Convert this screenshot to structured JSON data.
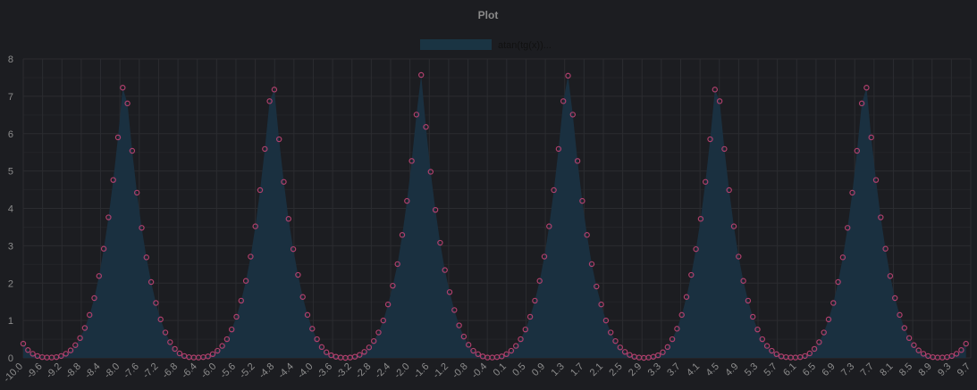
{
  "chart_data": {
    "type": "area",
    "title": "Plot",
    "xlabel": "",
    "ylabel": "",
    "xlim": [
      -10,
      10
    ],
    "ylim": [
      0,
      8
    ],
    "y_ticks": [
      "0",
      "1",
      "2",
      "3",
      "4",
      "5",
      "6",
      "7",
      "8"
    ],
    "x_tick_labels": [
      "-10.0",
      "-9.6",
      "-9.2",
      "-8.8",
      "-8.4",
      "-8.0",
      "-7.6",
      "-7.2",
      "-6.8",
      "-6.4",
      "-6.0",
      "-5.6",
      "-5.2",
      "-4.8",
      "-4.4",
      "-4.0",
      "-3.6",
      "-3.2",
      "-2.8",
      "-2.4",
      "-2.0",
      "-1.6",
      "-1.2",
      "-0.8",
      "-0.4",
      "0.1",
      "0.5",
      "0.9",
      "1.3",
      "1.7",
      "2.1",
      "2.5",
      "2.9",
      "3.3",
      "3.7",
      "4.1",
      "4.5",
      "4.9",
      "5.3",
      "5.7",
      "6.1",
      "6.5",
      "6.9",
      "7.3",
      "7.7",
      "8.1",
      "8.5",
      "8.9",
      "9.3",
      "9.7"
    ],
    "grid": true,
    "legend": "top-center",
    "series": [
      {
        "name": "atan(tg(x))...",
        "x_start": -10.0,
        "x_step": 0.1,
        "values": [
          0.38,
          0.21,
          0.11,
          0.05,
          0.02,
          0.01,
          0.01,
          0.02,
          0.05,
          0.11,
          0.2,
          0.34,
          0.53,
          0.8,
          1.15,
          1.6,
          2.19,
          2.92,
          3.76,
          4.76,
          5.9,
          7.23,
          6.81,
          5.54,
          4.42,
          3.48,
          2.69,
          2.03,
          1.47,
          1.03,
          0.68,
          0.42,
          0.24,
          0.12,
          0.05,
          0.02,
          0.01,
          0.01,
          0.02,
          0.04,
          0.1,
          0.19,
          0.32,
          0.5,
          0.76,
          1.1,
          1.53,
          2.06,
          2.71,
          3.52,
          4.49,
          5.59,
          6.87,
          7.18,
          5.85,
          4.71,
          3.72,
          2.91,
          2.22,
          1.63,
          1.15,
          0.78,
          0.5,
          0.29,
          0.15,
          0.07,
          0.03,
          0.01,
          0.0,
          0.01,
          0.03,
          0.08,
          0.16,
          0.28,
          0.45,
          0.68,
          1.0,
          1.43,
          1.93,
          2.51,
          3.29,
          4.2,
          5.27,
          6.51,
          7.57,
          6.18,
          4.98,
          3.96,
          3.08,
          2.35,
          1.76,
          1.28,
          0.87,
          0.57,
          0.35,
          0.19,
          0.1,
          0.04,
          0.01,
          0.01,
          0.02,
          0.04,
          0.1,
          0.19,
          0.32,
          0.5,
          0.76,
          1.1,
          1.53,
          2.06,
          2.71,
          3.52,
          4.49,
          5.59,
          6.87,
          7.55,
          6.51,
          5.27,
          4.2,
          3.29,
          2.51,
          1.91,
          1.43,
          1.0,
          0.68,
          0.45,
          0.28,
          0.16,
          0.08,
          0.03,
          0.01,
          0.0,
          0.01,
          0.03,
          0.07,
          0.15,
          0.29,
          0.5,
          0.78,
          1.15,
          1.63,
          2.22,
          2.91,
          3.72,
          4.71,
          5.85,
          7.18,
          6.87,
          5.59,
          4.49,
          3.52,
          2.71,
          2.06,
          1.53,
          1.1,
          0.76,
          0.5,
          0.32,
          0.19,
          0.1,
          0.04,
          0.02,
          0.01,
          0.01,
          0.02,
          0.05,
          0.12,
          0.24,
          0.42,
          0.68,
          1.03,
          1.47,
          2.03,
          2.69,
          3.48,
          4.42,
          5.54,
          6.81,
          7.23,
          5.9,
          4.76,
          3.76,
          2.92,
          2.19,
          1.6,
          1.15,
          0.8,
          0.53,
          0.34,
          0.2,
          0.11,
          0.05,
          0.02,
          0.01,
          0.01,
          0.02,
          0.05,
          0.11,
          0.21,
          0.38
        ]
      }
    ]
  },
  "colors": {
    "background": "#1c1d21",
    "area_fill": "#1a3040",
    "marker_stroke": "#b0406d",
    "legend_swatch": "#1a3443"
  }
}
